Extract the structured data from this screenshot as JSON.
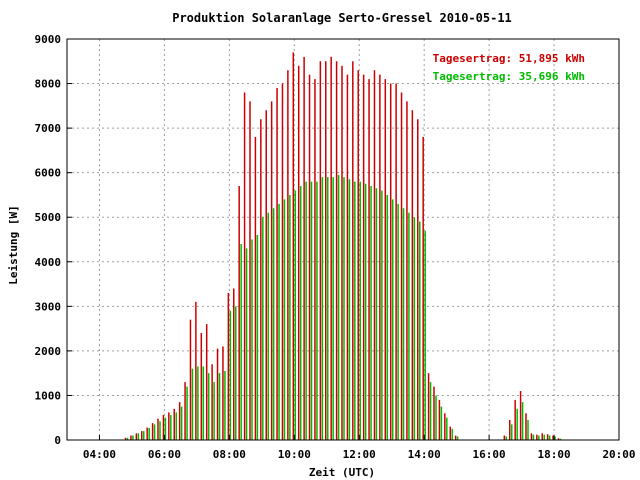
{
  "chart_data": {
    "type": "bar",
    "title": "Produktion Solaranlage Serto-Gressel 2010-05-11",
    "xlabel": "Zeit (UTC)",
    "ylabel": "Leistung [W]",
    "x_range": [
      "03:00",
      "20:00"
    ],
    "ylim": [
      0,
      9000
    ],
    "grid": true,
    "legend_position": "top-right",
    "x_ticks": [
      "04:00",
      "06:00",
      "08:00",
      "10:00",
      "12:00",
      "14:00",
      "16:00",
      "18:00",
      "20:00"
    ],
    "y_ticks": [
      "0",
      "1000",
      "2000",
      "3000",
      "4000",
      "5000",
      "6000",
      "7000",
      "8000",
      "9000"
    ],
    "series": [
      {
        "name": "Tagesertrag: 51,895 kWh",
        "color": "#cc0000",
        "points": [
          [
            "04:50",
            50
          ],
          [
            "05:00",
            100
          ],
          [
            "05:10",
            150
          ],
          [
            "05:20",
            200
          ],
          [
            "05:30",
            280
          ],
          [
            "05:40",
            380
          ],
          [
            "05:50",
            480
          ],
          [
            "06:00",
            560
          ],
          [
            "06:10",
            620
          ],
          [
            "06:20",
            700
          ],
          [
            "06:30",
            850
          ],
          [
            "06:40",
            1300
          ],
          [
            "06:50",
            2700
          ],
          [
            "07:00",
            3100
          ],
          [
            "07:10",
            2400
          ],
          [
            "07:20",
            2600
          ],
          [
            "07:30",
            1700
          ],
          [
            "07:40",
            2050
          ],
          [
            "07:50",
            2100
          ],
          [
            "08:00",
            3300
          ],
          [
            "08:10",
            3400
          ],
          [
            "08:20",
            5700
          ],
          [
            "08:30",
            7800
          ],
          [
            "08:40",
            7600
          ],
          [
            "08:50",
            6800
          ],
          [
            "09:00",
            7200
          ],
          [
            "09:10",
            7400
          ],
          [
            "09:20",
            7600
          ],
          [
            "09:30",
            7900
          ],
          [
            "09:40",
            8000
          ],
          [
            "09:50",
            8300
          ],
          [
            "10:00",
            8700
          ],
          [
            "10:10",
            8400
          ],
          [
            "10:20",
            8600
          ],
          [
            "10:30",
            8200
          ],
          [
            "10:40",
            8100
          ],
          [
            "10:50",
            8500
          ],
          [
            "11:00",
            8500
          ],
          [
            "11:10",
            8600
          ],
          [
            "11:20",
            8500
          ],
          [
            "11:30",
            8400
          ],
          [
            "11:40",
            8200
          ],
          [
            "11:50",
            8500
          ],
          [
            "12:00",
            8300
          ],
          [
            "12:10",
            8200
          ],
          [
            "12:20",
            8100
          ],
          [
            "12:30",
            8300
          ],
          [
            "12:40",
            8200
          ],
          [
            "12:50",
            8100
          ],
          [
            "13:00",
            8000
          ],
          [
            "13:10",
            8000
          ],
          [
            "13:20",
            7800
          ],
          [
            "13:30",
            7600
          ],
          [
            "13:40",
            7400
          ],
          [
            "13:50",
            7200
          ],
          [
            "14:00",
            6800
          ],
          [
            "14:10",
            1500
          ],
          [
            "14:20",
            1200
          ],
          [
            "14:30",
            900
          ],
          [
            "14:40",
            600
          ],
          [
            "14:50",
            300
          ],
          [
            "15:00",
            100
          ],
          [
            "16:30",
            100
          ],
          [
            "16:40",
            450
          ],
          [
            "16:50",
            900
          ],
          [
            "17:00",
            1100
          ],
          [
            "17:10",
            600
          ],
          [
            "17:20",
            150
          ],
          [
            "17:30",
            120
          ],
          [
            "17:40",
            150
          ],
          [
            "17:50",
            130
          ],
          [
            "18:00",
            100
          ],
          [
            "18:10",
            40
          ]
        ]
      },
      {
        "name": "Tagesertrag: 35,696 kWh",
        "color": "#00bb00",
        "points": [
          [
            "04:50",
            50
          ],
          [
            "05:00",
            100
          ],
          [
            "05:10",
            150
          ],
          [
            "05:20",
            200
          ],
          [
            "05:30",
            270
          ],
          [
            "05:40",
            350
          ],
          [
            "05:50",
            420
          ],
          [
            "06:00",
            500
          ],
          [
            "06:10",
            560
          ],
          [
            "06:20",
            620
          ],
          [
            "06:30",
            750
          ],
          [
            "06:40",
            1200
          ],
          [
            "06:50",
            1600
          ],
          [
            "07:00",
            1650
          ],
          [
            "07:10",
            1650
          ],
          [
            "07:20",
            1500
          ],
          [
            "07:30",
            1300
          ],
          [
            "07:40",
            1500
          ],
          [
            "07:50",
            1550
          ],
          [
            "08:00",
            2900
          ],
          [
            "08:10",
            3000
          ],
          [
            "08:20",
            4400
          ],
          [
            "08:30",
            4300
          ],
          [
            "08:40",
            4500
          ],
          [
            "08:50",
            4600
          ],
          [
            "09:00",
            5000
          ],
          [
            "09:10",
            5100
          ],
          [
            "09:20",
            5200
          ],
          [
            "09:30",
            5300
          ],
          [
            "09:40",
            5400
          ],
          [
            "09:50",
            5500
          ],
          [
            "10:00",
            5600
          ],
          [
            "10:10",
            5700
          ],
          [
            "10:20",
            5800
          ],
          [
            "10:30",
            5800
          ],
          [
            "10:40",
            5800
          ],
          [
            "10:50",
            5900
          ],
          [
            "11:00",
            5900
          ],
          [
            "11:10",
            5900
          ],
          [
            "11:20",
            5950
          ],
          [
            "11:30",
            5900
          ],
          [
            "11:40",
            5850
          ],
          [
            "11:50",
            5800
          ],
          [
            "12:00",
            5800
          ],
          [
            "12:10",
            5750
          ],
          [
            "12:20",
            5700
          ],
          [
            "12:30",
            5650
          ],
          [
            "12:40",
            5600
          ],
          [
            "12:50",
            5500
          ],
          [
            "13:00",
            5400
          ],
          [
            "13:10",
            5300
          ],
          [
            "13:20",
            5200
          ],
          [
            "13:30",
            5100
          ],
          [
            "13:40",
            5000
          ],
          [
            "13:50",
            4900
          ],
          [
            "14:00",
            4700
          ],
          [
            "14:10",
            1300
          ],
          [
            "14:20",
            1000
          ],
          [
            "14:30",
            750
          ],
          [
            "14:40",
            500
          ],
          [
            "14:50",
            250
          ],
          [
            "15:00",
            80
          ],
          [
            "16:30",
            80
          ],
          [
            "16:40",
            350
          ],
          [
            "16:50",
            700
          ],
          [
            "17:00",
            850
          ],
          [
            "17:10",
            450
          ],
          [
            "17:20",
            120
          ],
          [
            "17:30",
            100
          ],
          [
            "17:40",
            120
          ],
          [
            "17:50",
            100
          ],
          [
            "18:00",
            80
          ],
          [
            "18:10",
            30
          ]
        ]
      }
    ]
  }
}
